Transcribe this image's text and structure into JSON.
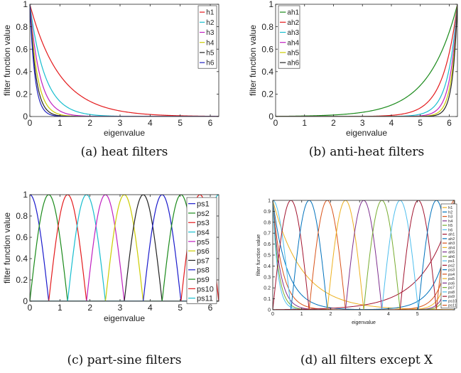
{
  "chart_data": [
    {
      "type": "line",
      "caption": "(a) heat filters",
      "xlabel": "eigenvalue",
      "ylabel": "filter function value",
      "xlim": [
        0,
        6.2832
      ],
      "ylim": [
        0,
        1
      ],
      "xticks": [
        0,
        1,
        2,
        3,
        4,
        5,
        6
      ],
      "yticks": [
        0,
        0.2,
        0.4,
        0.6,
        0.8,
        1
      ],
      "xtick_labels": [
        "0",
        "1",
        "2",
        "3",
        "4",
        "5",
        "6"
      ],
      "ytick_labels": [
        "0",
        "0.2",
        "0.4",
        "0.6",
        "0.8",
        "1"
      ],
      "legend_position": "top-right",
      "series": [
        {
          "name": "h1",
          "color": "#e41a1c",
          "model": "exp",
          "k": 1
        },
        {
          "name": "h2",
          "color": "#17becf",
          "model": "exp",
          "k": 2
        },
        {
          "name": "h3",
          "color": "#c020c0",
          "model": "exp",
          "k": 3
        },
        {
          "name": "h4",
          "color": "#cccc00",
          "model": "exp",
          "k": 4
        },
        {
          "name": "h5",
          "color": "#222222",
          "model": "exp",
          "k": 5
        },
        {
          "name": "h6",
          "color": "#2020c0",
          "model": "exp",
          "k": 6
        }
      ]
    },
    {
      "type": "line",
      "caption": "(b) anti-heat filters",
      "xlabel": "eigenvalue",
      "ylabel": "filter function value",
      "xlim": [
        0,
        6.2832
      ],
      "ylim": [
        0,
        1
      ],
      "xticks": [
        0,
        1,
        2,
        3,
        4,
        5,
        6
      ],
      "yticks": [
        0,
        0.2,
        0.4,
        0.6,
        0.8,
        1
      ],
      "xtick_labels": [
        "0",
        "1",
        "2",
        "3",
        "4",
        "5",
        "6"
      ],
      "ytick_labels": [
        "0",
        "0.2",
        "0.4",
        "0.6",
        "0.8",
        "1"
      ],
      "legend_position": "top-left",
      "series": [
        {
          "name": "ah1",
          "color": "#1a8a1a",
          "model": "antiexp",
          "k": 1
        },
        {
          "name": "ah2",
          "color": "#e41a1c",
          "model": "antiexp",
          "k": 2
        },
        {
          "name": "ah3",
          "color": "#17becf",
          "model": "antiexp",
          "k": 3
        },
        {
          "name": "ah4",
          "color": "#c020c0",
          "model": "antiexp",
          "k": 4
        },
        {
          "name": "ah5",
          "color": "#cccc00",
          "model": "antiexp",
          "k": 5
        },
        {
          "name": "ah6",
          "color": "#222222",
          "model": "antiexp",
          "k": 6
        }
      ]
    },
    {
      "type": "line",
      "caption": "(c) part-sine filters",
      "xlabel": "eigenvalue",
      "ylabel": "filter function value",
      "xlim": [
        0,
        6.2832
      ],
      "ylim": [
        0,
        1
      ],
      "xticks": [
        0,
        1,
        2,
        3,
        4,
        5,
        6
      ],
      "yticks": [
        0,
        0.2,
        0.4,
        0.6,
        0.8,
        1
      ],
      "xtick_labels": [
        "0",
        "1",
        "2",
        "3",
        "4",
        "5",
        "6"
      ],
      "ytick_labels": [
        "0",
        "0.2",
        "0.4",
        "0.6",
        "0.8",
        "1"
      ],
      "legend_position": "right",
      "series": [
        {
          "name": "ps1",
          "color": "#1a1acc",
          "model": "sine",
          "c": 0.0
        },
        {
          "name": "ps2",
          "color": "#1a8a1a",
          "model": "sine",
          "c": 0.628
        },
        {
          "name": "ps3",
          "color": "#e41a1c",
          "model": "sine",
          "c": 1.257
        },
        {
          "name": "ps4",
          "color": "#17becf",
          "model": "sine",
          "c": 1.885
        },
        {
          "name": "ps5",
          "color": "#c020c0",
          "model": "sine",
          "c": 2.513
        },
        {
          "name": "ps6",
          "color": "#cccc00",
          "model": "sine",
          "c": 3.142
        },
        {
          "name": "ps7",
          "color": "#222222",
          "model": "sine",
          "c": 3.77
        },
        {
          "name": "ps8",
          "color": "#1a1acc",
          "model": "sine",
          "c": 4.398
        },
        {
          "name": "ps9",
          "color": "#1a8a1a",
          "model": "sine",
          "c": 5.027
        },
        {
          "name": "ps10",
          "color": "#e41a1c",
          "model": "sine",
          "c": 5.655
        },
        {
          "name": "ps11",
          "color": "#17becf",
          "model": "sine",
          "c": 6.283
        }
      ]
    },
    {
      "type": "line",
      "caption": "(d) all filters except X",
      "xlabel": "eigenvalue",
      "ylabel": "filter function value",
      "xlim": [
        0,
        6.2832
      ],
      "ylim": [
        0,
        1
      ],
      "xticks": [
        0,
        1,
        2,
        3,
        4,
        5
      ],
      "yticks": [
        0,
        0.1,
        0.2,
        0.3,
        0.4,
        0.5,
        0.6,
        0.7,
        0.8,
        0.9,
        1
      ],
      "xtick_labels": [
        "0",
        "1",
        "2",
        "3",
        "4",
        "5"
      ],
      "ytick_labels": [
        "0",
        "0.1",
        "0.2",
        "0.3",
        "0.4",
        "0.5",
        "0.6",
        "0.7",
        "0.8",
        "0.9",
        "1"
      ],
      "legend_position": "right",
      "series": [
        {
          "name": "h1",
          "color": "#edb120",
          "model": "exp",
          "k": 1
        },
        {
          "name": "h2",
          "color": "#0072bd",
          "model": "exp",
          "k": 2
        },
        {
          "name": "h3",
          "color": "#d95319",
          "model": "exp",
          "k": 3
        },
        {
          "name": "h4",
          "color": "#7e2f8e",
          "model": "exp",
          "k": 4
        },
        {
          "name": "h5",
          "color": "#77ac30",
          "model": "exp",
          "k": 5
        },
        {
          "name": "h6",
          "color": "#4dbeee",
          "model": "exp",
          "k": 6
        },
        {
          "name": "ah1",
          "color": "#a2142f",
          "model": "antiexp",
          "k": 1
        },
        {
          "name": "ah2",
          "color": "#0072bd",
          "model": "antiexp",
          "k": 2
        },
        {
          "name": "ah3",
          "color": "#d95319",
          "model": "antiexp",
          "k": 3
        },
        {
          "name": "ah4",
          "color": "#edb120",
          "model": "antiexp",
          "k": 4
        },
        {
          "name": "ah5",
          "color": "#7e2f8e",
          "model": "antiexp",
          "k": 5
        },
        {
          "name": "ah6",
          "color": "#77ac30",
          "model": "antiexp",
          "k": 6
        },
        {
          "name": "ps1",
          "color": "#4dbeee",
          "model": "sine",
          "c": 0.0
        },
        {
          "name": "ps2",
          "color": "#a2142f",
          "model": "sine",
          "c": 0.628
        },
        {
          "name": "ps3",
          "color": "#0072bd",
          "model": "sine",
          "c": 1.257
        },
        {
          "name": "ps4",
          "color": "#d95319",
          "model": "sine",
          "c": 1.885
        },
        {
          "name": "ps5",
          "color": "#edb120",
          "model": "sine",
          "c": 2.513
        },
        {
          "name": "ps6",
          "color": "#7e2f8e",
          "model": "sine",
          "c": 3.142
        },
        {
          "name": "ps7",
          "color": "#77ac30",
          "model": "sine",
          "c": 3.77
        },
        {
          "name": "ps8",
          "color": "#4dbeee",
          "model": "sine",
          "c": 4.398
        },
        {
          "name": "ps9",
          "color": "#a2142f",
          "model": "sine",
          "c": 5.027
        },
        {
          "name": "ps10",
          "color": "#0072bd",
          "model": "sine",
          "c": 5.655
        },
        {
          "name": "ps11",
          "color": "#d95319",
          "model": "sine",
          "c": 6.283
        }
      ]
    }
  ]
}
